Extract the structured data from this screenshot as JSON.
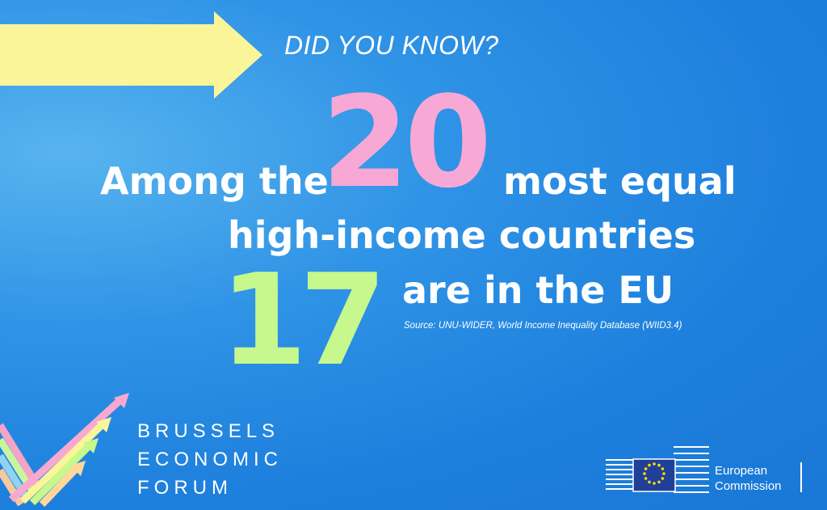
{
  "header": {
    "kicker": "DID YOU KNOW?"
  },
  "stat": {
    "line1_before": "Among the",
    "number_1": "20",
    "line1_after": "most equal",
    "line2": "high-income countries",
    "number_2": "17",
    "line3": "are in the EU"
  },
  "source": "Source: UNU-WIDER, World Income Inequality Database (WIID3.4)",
  "bef_logo": {
    "lines": [
      "BRUSSELS",
      "ECONOMIC",
      "FORUM"
    ]
  },
  "ec_logo": {
    "line1": "European",
    "line2": "Commission"
  },
  "colors": {
    "background": "#1d7fdc",
    "arrow": "#fbf59a",
    "number_1": "#f7a8d4",
    "number_2": "#c6f88d",
    "text": "#ffffff"
  },
  "icons": [
    "arrow-banner-icon",
    "bef-arrows-logo-icon",
    "eu-flag-icon",
    "commission-building-icon"
  ]
}
